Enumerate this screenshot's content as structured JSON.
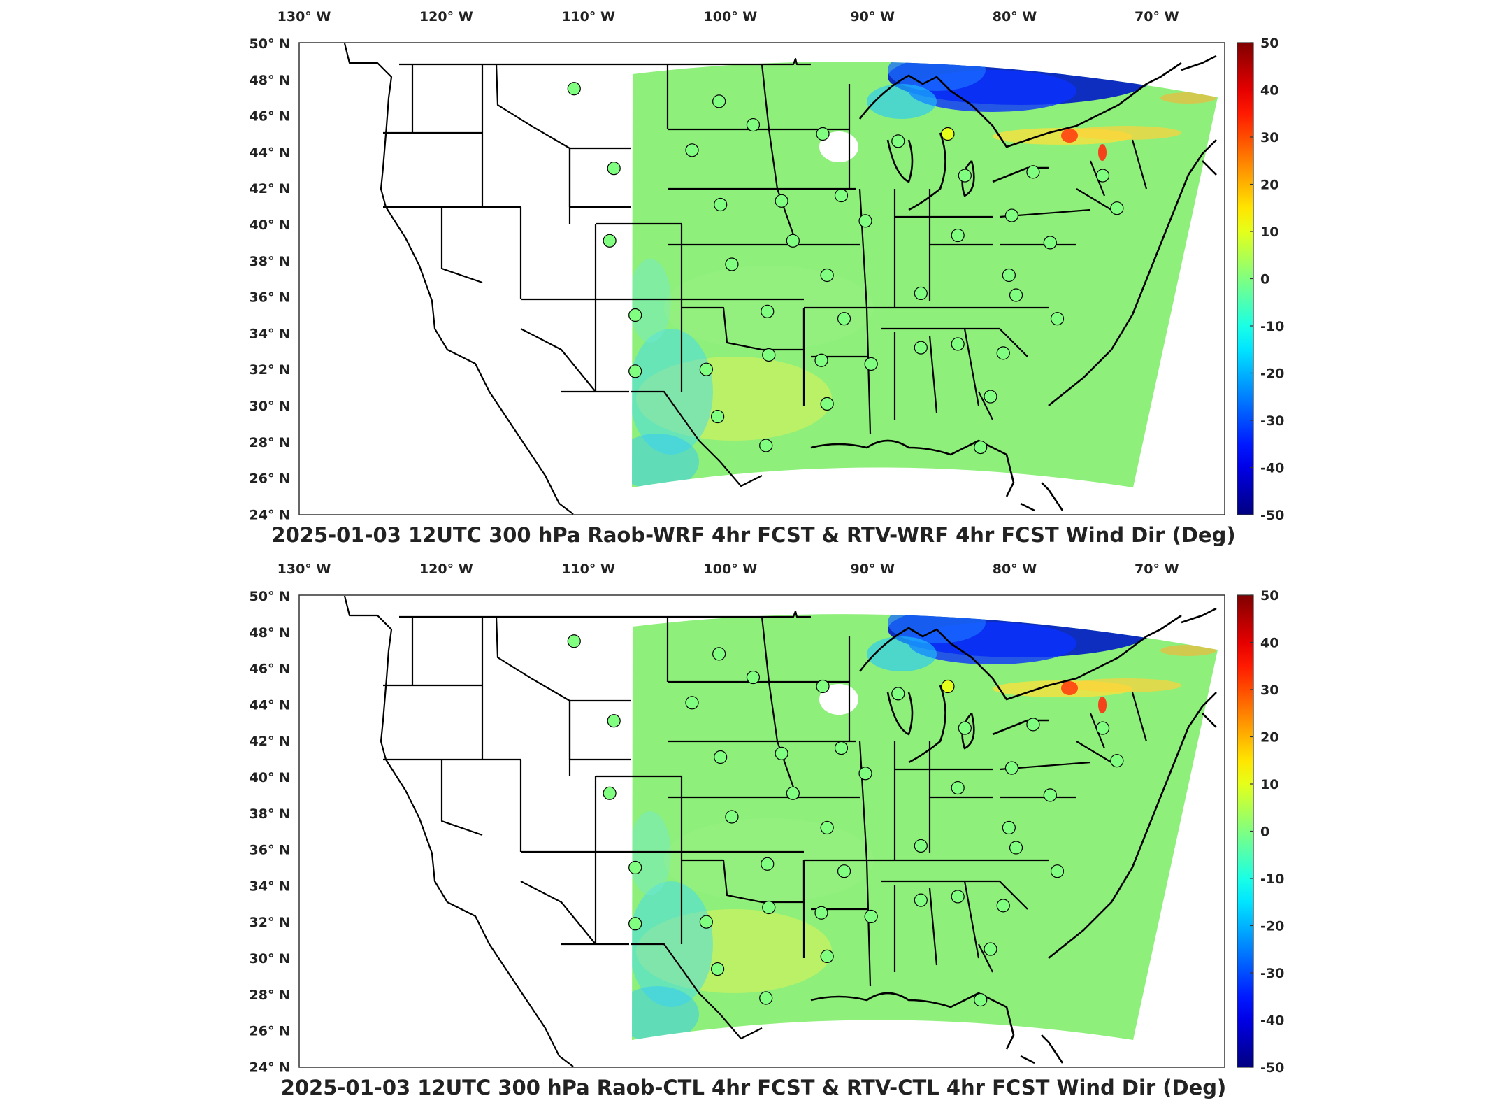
{
  "panels": [
    {
      "id": "top",
      "title": "2025-01-03 12UTC 300 hPa Raob-WRF 4hr FCST & RTV-WRF 4hr FCST Wind Dir (Deg)"
    },
    {
      "id": "bottom",
      "title": "2025-01-03 12UTC 300 hPa Raob-CTL 4hr FCST & RTV-CTL 4hr FCST Wind Dir (Deg)"
    }
  ],
  "lon_ticks": [
    "130° W",
    "120° W",
    "110° W",
    "100° W",
    "90° W",
    "80° W",
    "70° W"
  ],
  "lat_ticks": [
    "50° N",
    "48° N",
    "46° N",
    "44° N",
    "42° N",
    "40° N",
    "38° N",
    "36° N",
    "34° N",
    "32° N",
    "30° N",
    "28° N",
    "26° N",
    "24° N"
  ],
  "colorbar": {
    "min": -50,
    "max": 50,
    "ticks": [
      "50",
      "40",
      "30",
      "20",
      "10",
      "0",
      "-10",
      "-20",
      "-30",
      "-40",
      "-50"
    ],
    "colormap": "jet",
    "colors": [
      "#00008f",
      "#0000ff",
      "#00ffff",
      "#7fff7f",
      "#ffff00",
      "#ff0000",
      "#800000"
    ]
  },
  "chart_data": {
    "type": "map",
    "variable": "Wind Dir (Deg)",
    "stations": [
      {
        "lon": -111.0,
        "lat": 47.5,
        "value": 0
      },
      {
        "lon": -108.2,
        "lat": 43.1,
        "value": 0
      },
      {
        "lon": -108.5,
        "lat": 39.1,
        "value": 0
      },
      {
        "lon": -106.7,
        "lat": 35.0,
        "value": 0
      },
      {
        "lon": -106.7,
        "lat": 31.9,
        "value": 0
      },
      {
        "lon": -100.8,
        "lat": 46.8,
        "value": 0
      },
      {
        "lon": -98.4,
        "lat": 45.5,
        "value": 0
      },
      {
        "lon": -102.7,
        "lat": 44.1,
        "value": 0
      },
      {
        "lon": -100.7,
        "lat": 41.1,
        "value": 0
      },
      {
        "lon": -96.4,
        "lat": 41.3,
        "value": 0
      },
      {
        "lon": -99.9,
        "lat": 37.8,
        "value": 0
      },
      {
        "lon": -95.6,
        "lat": 39.1,
        "value": 0
      },
      {
        "lon": -97.4,
        "lat": 35.2,
        "value": 0
      },
      {
        "lon": -101.7,
        "lat": 32.0,
        "value": 0
      },
      {
        "lon": -97.3,
        "lat": 32.8,
        "value": 0
      },
      {
        "lon": -100.9,
        "lat": 29.4,
        "value": 0
      },
      {
        "lon": -97.5,
        "lat": 27.8,
        "value": 0
      },
      {
        "lon": -93.5,
        "lat": 45.0,
        "value": 0
      },
      {
        "lon": -92.2,
        "lat": 41.6,
        "value": 0
      },
      {
        "lon": -90.5,
        "lat": 40.2,
        "value": 0
      },
      {
        "lon": -93.2,
        "lat": 37.2,
        "value": 0
      },
      {
        "lon": -92.0,
        "lat": 34.8,
        "value": 0
      },
      {
        "lon": -93.6,
        "lat": 32.5,
        "value": 0
      },
      {
        "lon": -93.2,
        "lat": 30.1,
        "value": 0
      },
      {
        "lon": -90.1,
        "lat": 32.3,
        "value": 0
      },
      {
        "lon": -88.2,
        "lat": 44.6,
        "value": 0
      },
      {
        "lon": -84.7,
        "lat": 45.0,
        "value": 10
      },
      {
        "lon": -83.5,
        "lat": 42.7,
        "value": 0
      },
      {
        "lon": -86.6,
        "lat": 33.2,
        "value": 0
      },
      {
        "lon": -84.0,
        "lat": 33.4,
        "value": 0
      },
      {
        "lon": -86.6,
        "lat": 36.2,
        "value": 0
      },
      {
        "lon": -84.0,
        "lat": 39.4,
        "value": 0
      },
      {
        "lon": -80.8,
        "lat": 32.9,
        "value": 0
      },
      {
        "lon": -81.7,
        "lat": 30.5,
        "value": 0
      },
      {
        "lon": -82.4,
        "lat": 27.7,
        "value": 0
      },
      {
        "lon": -80.2,
        "lat": 40.5,
        "value": 0
      },
      {
        "lon": -80.4,
        "lat": 37.2,
        "value": 0
      },
      {
        "lon": -79.9,
        "lat": 36.1,
        "value": 0
      },
      {
        "lon": -77.0,
        "lat": 34.8,
        "value": 0
      },
      {
        "lon": -77.5,
        "lat": 39.0,
        "value": 0
      },
      {
        "lon": -78.7,
        "lat": 42.9,
        "value": 0
      },
      {
        "lon": -73.8,
        "lat": 42.7,
        "value": 0
      },
      {
        "lon": -72.8,
        "lat": 40.9,
        "value": 0
      }
    ]
  }
}
